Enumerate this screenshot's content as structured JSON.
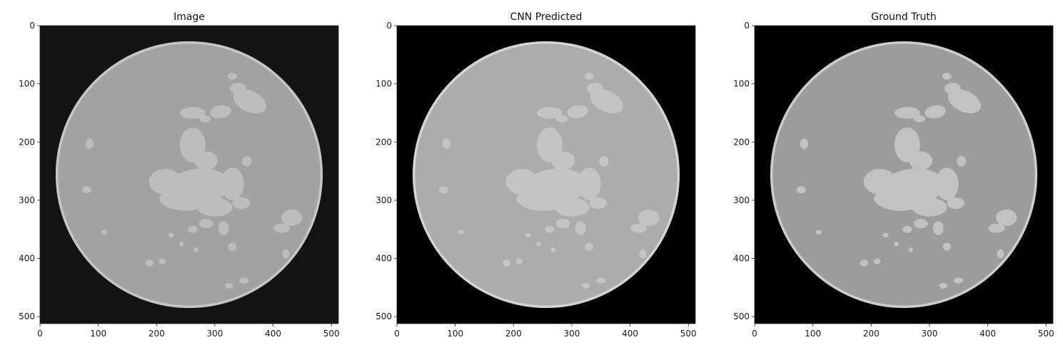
{
  "figure": {
    "panels": [
      {
        "title": "Image",
        "background_color": "#131313",
        "disk_color": "#a2a2a2",
        "rim_color": "#c6c6c6",
        "region_color": "#bdbdbd"
      },
      {
        "title": "CNN Predicted",
        "background_color": "#000000",
        "disk_color": "#acacac",
        "rim_color": "#d4d4d4",
        "region_color": "#c4c4c4"
      },
      {
        "title": "Ground Truth",
        "background_color": "#000000",
        "disk_color": "#9c9c9c",
        "rim_color": "#cdcdcd",
        "region_color": "#c2c2c2"
      }
    ],
    "x_ticks": [
      "0",
      "100",
      "200",
      "300",
      "400",
      "500"
    ],
    "y_ticks": [
      "0",
      "100",
      "200",
      "300",
      "400",
      "500"
    ],
    "axis_range": [
      0,
      512
    ]
  }
}
